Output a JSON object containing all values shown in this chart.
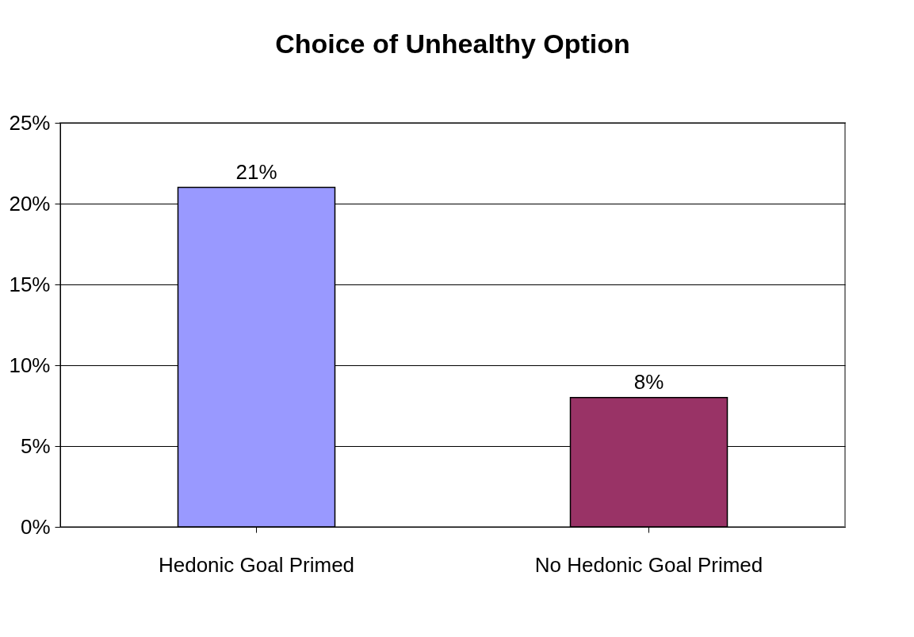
{
  "chart_data": {
    "type": "bar",
    "title": "Choice of Unhealthy Option",
    "categories": [
      "Hedonic Goal Primed",
      "No Hedonic Goal Primed"
    ],
    "values": [
      21,
      8
    ],
    "colors": [
      "#9999ff",
      "#993366"
    ],
    "value_labels": [
      "21%",
      "8%"
    ],
    "ylim": [
      0,
      25
    ],
    "yticks": [
      {
        "value": 0,
        "label": "0%"
      },
      {
        "value": 5,
        "label": "5%"
      },
      {
        "value": 10,
        "label": "10%"
      },
      {
        "value": 15,
        "label": "15%"
      },
      {
        "value": 20,
        "label": "20%"
      },
      {
        "value": 25,
        "label": "25%"
      }
    ],
    "grid": "y",
    "legend": false
  }
}
